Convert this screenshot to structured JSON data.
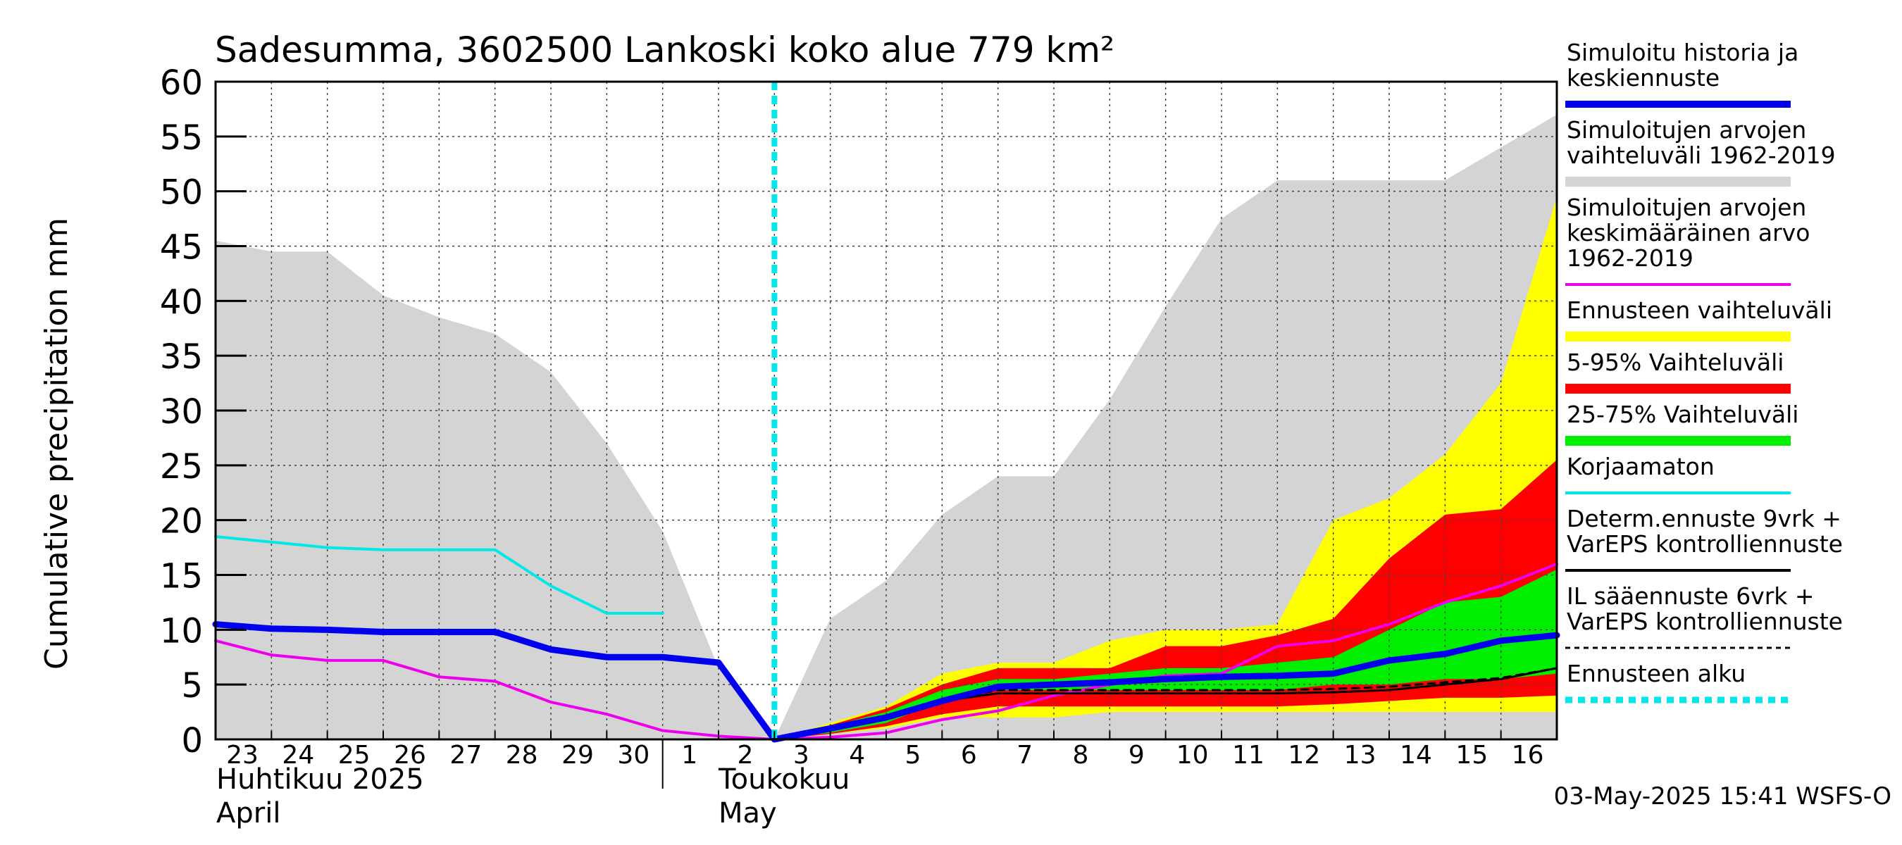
{
  "chart_data": {
    "type": "area",
    "title": "Sadesumma, 3602500 Lankoski koko alue 779 km²",
    "ylabel": "Cumulative precipitation   mm",
    "ylim": [
      0,
      60
    ],
    "yticks": [
      0,
      5,
      10,
      15,
      20,
      25,
      30,
      35,
      40,
      45,
      50,
      55,
      60
    ],
    "x_start": 23,
    "x_end": 47,
    "xticks": [
      {
        "x": 23,
        "label": "23"
      },
      {
        "x": 24,
        "label": "24"
      },
      {
        "x": 25,
        "label": "25"
      },
      {
        "x": 26,
        "label": "26"
      },
      {
        "x": 27,
        "label": "27"
      },
      {
        "x": 28,
        "label": "28"
      },
      {
        "x": 29,
        "label": "29"
      },
      {
        "x": 30,
        "label": "30"
      },
      {
        "x": 31,
        "label": "1"
      },
      {
        "x": 32,
        "label": "2"
      },
      {
        "x": 33,
        "label": "3"
      },
      {
        "x": 34,
        "label": "4"
      },
      {
        "x": 35,
        "label": "5"
      },
      {
        "x": 36,
        "label": "6"
      },
      {
        "x": 37,
        "label": "7"
      },
      {
        "x": 38,
        "label": "8"
      },
      {
        "x": 39,
        "label": "9"
      },
      {
        "x": 40,
        "label": "10"
      },
      {
        "x": 41,
        "label": "11"
      },
      {
        "x": 42,
        "label": "12"
      },
      {
        "x": 43,
        "label": "13"
      },
      {
        "x": 44,
        "label": "14"
      },
      {
        "x": 45,
        "label": "15"
      },
      {
        "x": 46,
        "label": "16"
      }
    ],
    "month_labels": {
      "april_fi": "Huhtikuu  2025",
      "april_en": "April",
      "may_fi": "Toukokuu",
      "may_en": "May"
    },
    "forecast_start_x": 33,
    "timestamp": "03-May-2025 15:41 WSFS-O",
    "series": [
      {
        "name": "Simuloitujen arvojen vaihteluväli 1962-2019",
        "kind": "band",
        "color": "#d4d4d4",
        "x": [
          23,
          24,
          25,
          26,
          27,
          28,
          29,
          30,
          31,
          32,
          33,
          34,
          35,
          36,
          37,
          38,
          39,
          40,
          41,
          42,
          43,
          44,
          45,
          46,
          47
        ],
        "upper": [
          45.5,
          44.5,
          44.5,
          40.5,
          38.5,
          37,
          33.5,
          27,
          19,
          6.5,
          0,
          11,
          14.5,
          20.5,
          24,
          24,
          31,
          39.5,
          47.5,
          51,
          51,
          51,
          51,
          54,
          57
        ],
        "lower": [
          0,
          0,
          0,
          0,
          0,
          0,
          0,
          0,
          0,
          0,
          0,
          0,
          0,
          0,
          0,
          0,
          0,
          0,
          0,
          0,
          0,
          0,
          0,
          0,
          0
        ]
      },
      {
        "name": "Ennusteen vaihteluväli",
        "kind": "band",
        "color": "#ffff00",
        "x": [
          33,
          34,
          35,
          36,
          37,
          38,
          39,
          40,
          41,
          42,
          43,
          44,
          45,
          46,
          47
        ],
        "upper": [
          0,
          1.5,
          3,
          6,
          7,
          7,
          9,
          10,
          10,
          10.5,
          20,
          22,
          26,
          32.5,
          49.5
        ],
        "lower": [
          0,
          0.5,
          1,
          2,
          2,
          2,
          2.5,
          2.5,
          2.5,
          2.5,
          2.5,
          2.5,
          2.5,
          2.5,
          2.5
        ]
      },
      {
        "name": "5-95% Vaihteluväli",
        "kind": "band",
        "color": "#ff0000",
        "x": [
          33,
          34,
          35,
          36,
          37,
          38,
          39,
          40,
          41,
          42,
          43,
          44,
          45,
          46,
          47
        ],
        "upper": [
          0,
          1.3,
          2.8,
          5,
          6.5,
          6.5,
          6.5,
          8.5,
          8.5,
          9.5,
          11,
          16.5,
          20.5,
          21,
          25.5
        ],
        "lower": [
          0,
          0.5,
          1.2,
          2.3,
          3,
          3,
          3,
          3,
          3,
          3,
          3.2,
          3.5,
          3.8,
          3.8,
          4
        ]
      },
      {
        "name": "25-75% Vaihteluväli",
        "kind": "band",
        "color": "#00ee00",
        "x": [
          33,
          34,
          35,
          36,
          37,
          38,
          39,
          40,
          41,
          42,
          43,
          44,
          45,
          46,
          47
        ],
        "upper": [
          0,
          1.2,
          2.5,
          4.5,
          5.5,
          5.5,
          6,
          6.5,
          6.5,
          7,
          7.5,
          10,
          12.5,
          13,
          15.5
        ],
        "lower": [
          0,
          0.6,
          1.5,
          3.5,
          4.5,
          4.5,
          4.5,
          4.5,
          4.5,
          4.5,
          5,
          5,
          5.5,
          5.5,
          6
        ]
      },
      {
        "name": "Korjaamaton",
        "kind": "line",
        "color": "#00e8e8",
        "width": 4,
        "x": [
          23,
          24,
          25,
          26,
          27,
          28,
          29,
          30,
          31
        ],
        "values": [
          18.5,
          18,
          17.5,
          17.3,
          17.3,
          17.3,
          14,
          11.5,
          11.5
        ]
      },
      {
        "name": "Simuloitujen arvojen keskimääräinen arvo 1962-2019",
        "kind": "line",
        "color": "#ee00ee",
        "width": 4,
        "x": [
          23,
          24,
          25,
          26,
          27,
          28,
          29,
          30,
          31,
          32,
          33,
          34,
          35,
          36,
          37,
          38,
          39,
          40,
          41,
          42,
          43,
          44,
          45,
          46,
          47
        ],
        "values": [
          9,
          7.7,
          7.2,
          7.2,
          5.7,
          5.3,
          3.4,
          2.3,
          0.8,
          0.3,
          0,
          0.2,
          0.6,
          1.8,
          2.6,
          4,
          5,
          5.8,
          6,
          8.5,
          9,
          10.5,
          12.5,
          14,
          16
        ]
      },
      {
        "name": "Determ.ennuste 9vrk + VarEPS kontrolliennuste",
        "kind": "line",
        "color": "#000000",
        "width": 3,
        "x": [
          33,
          34,
          35,
          36,
          37,
          38,
          39,
          40,
          41,
          42,
          43,
          44,
          45,
          46,
          47
        ],
        "values": [
          0,
          0.8,
          2,
          3.5,
          4.2,
          4.2,
          4.2,
          4.2,
          4.2,
          4.2,
          4.3,
          4.5,
          5,
          5.5,
          6.5
        ]
      },
      {
        "name": "IL sääennuste 6vrk + VarEPS kontrolliennuste",
        "kind": "line",
        "color": "#000000",
        "width": 3,
        "dash": "10,8",
        "x": [
          33,
          34,
          35,
          36,
          37,
          38,
          39,
          40,
          41,
          42,
          43,
          44,
          45,
          46,
          47
        ],
        "values": [
          0,
          0.8,
          2,
          3.5,
          4.5,
          4.5,
          4.5,
          4.5,
          4.5,
          4.5,
          4.6,
          4.8,
          5.2,
          5.6,
          6.5
        ]
      },
      {
        "name": "Simuloitu historia ja keskiennuste",
        "kind": "line",
        "color": "#0000ee",
        "width": 9,
        "x": [
          23,
          24,
          25,
          26,
          27,
          28,
          29,
          30,
          31,
          32,
          33,
          34,
          35,
          36,
          37,
          38,
          39,
          40,
          41,
          42,
          43,
          44,
          45,
          46,
          47
        ],
        "values": [
          10.5,
          10.1,
          10,
          9.8,
          9.8,
          9.8,
          8.2,
          7.5,
          7.5,
          7,
          0,
          1,
          2,
          3.5,
          4.8,
          5,
          5.2,
          5.5,
          5.7,
          5.8,
          6,
          7.2,
          7.8,
          9,
          9.5
        ]
      }
    ],
    "legend": [
      {
        "label_lines": [
          "Simuloitu historia ja",
          "keskiennuste"
        ],
        "style": "line",
        "color": "#0000ee"
      },
      {
        "label_lines": [
          "Simuloitujen arvojen",
          "vaihteluväli 1962-2019"
        ],
        "style": "band",
        "color": "#d4d4d4"
      },
      {
        "label_lines": [
          "Simuloitujen arvojen",
          "keskimääräinen arvo",
          "   1962-2019"
        ],
        "style": "thin",
        "color": "#ee00ee"
      },
      {
        "label_lines": [
          "Ennusteen vaihteluväli"
        ],
        "style": "band",
        "color": "#ffff00"
      },
      {
        "label_lines": [
          "5-95% Vaihteluväli"
        ],
        "style": "band",
        "color": "#ff0000"
      },
      {
        "label_lines": [
          "25-75% Vaihteluväli"
        ],
        "style": "band",
        "color": "#00ee00"
      },
      {
        "label_lines": [
          "Korjaamaton"
        ],
        "style": "thin",
        "color": "#00e8e8"
      },
      {
        "label_lines": [
          "Determ.ennuste 9vrk +",
          "VarEPS kontrolliennuste"
        ],
        "style": "thin",
        "color": "#000000"
      },
      {
        "label_lines": [
          "IL sääennuste 6vrk  +",
          "  VarEPS kontrolliennuste"
        ],
        "style": "dashed",
        "color": "#000000"
      },
      {
        "label_lines": [
          "Ennusteen alku"
        ],
        "style": "dotted",
        "color": "#00e8e8"
      }
    ]
  }
}
